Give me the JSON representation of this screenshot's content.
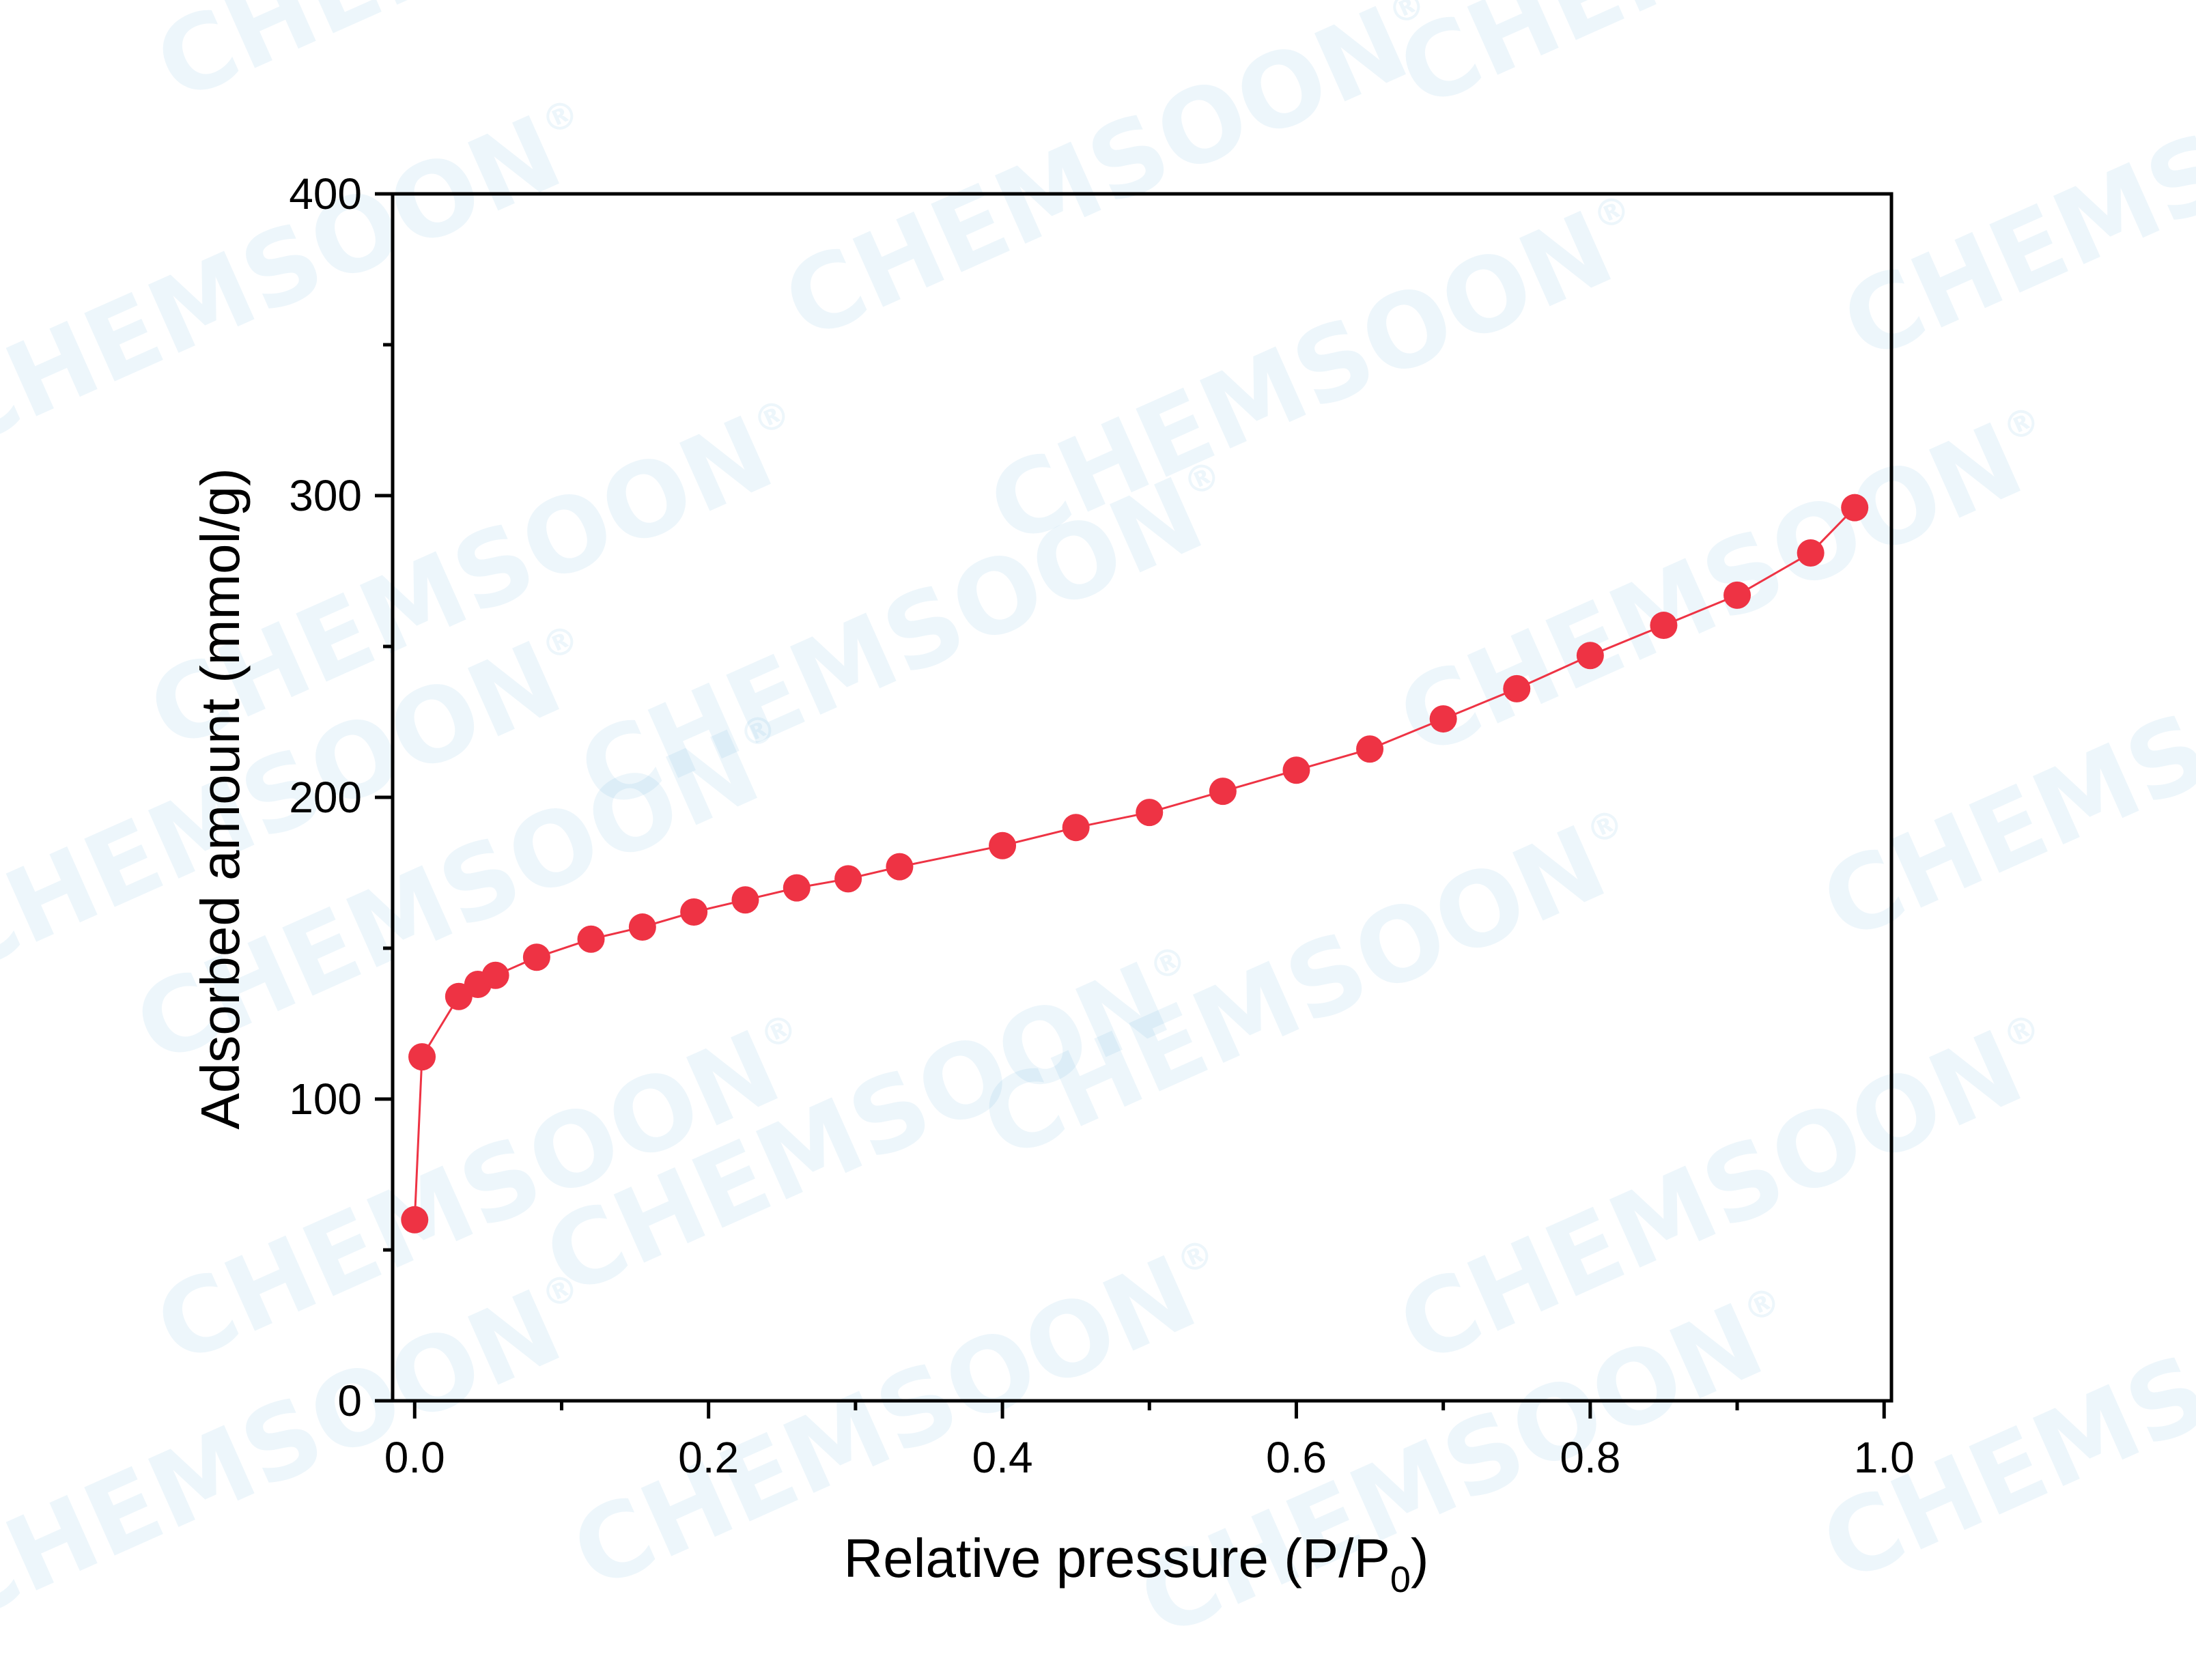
{
  "watermark": {
    "text": "CHEMSOON",
    "mark": "®",
    "color": "#3aa0d8"
  },
  "chart_data": {
    "type": "line",
    "xlabel_main": "Relative pressure (P/P",
    "xlabel_sub": "0",
    "xlabel_end": ")",
    "ylabel": "Adsorbed amount (mmol/g)",
    "xlim": [
      -0.015,
      1.005
    ],
    "ylim": [
      0,
      400
    ],
    "xticks": [
      0.0,
      0.2,
      0.4,
      0.6,
      0.8,
      1.0
    ],
    "xtick_labels": [
      "0.0",
      "0.2",
      "0.4",
      "0.6",
      "0.8",
      "1.0"
    ],
    "xminor": [
      0.1,
      0.3,
      0.5,
      0.7,
      0.9
    ],
    "yticks": [
      0,
      100,
      200,
      300,
      400
    ],
    "ytick_labels": [
      "0",
      "100",
      "200",
      "300",
      "400"
    ],
    "yminor": [
      50,
      150,
      250,
      350
    ],
    "grid": false,
    "legend": "none",
    "series": [
      {
        "color": "#ee3344",
        "x": [
          0.0,
          0.005,
          0.03,
          0.043,
          0.055,
          0.083,
          0.12,
          0.155,
          0.19,
          0.225,
          0.26,
          0.295,
          0.33,
          0.4,
          0.45,
          0.5,
          0.55,
          0.6,
          0.65,
          0.7,
          0.75,
          0.8,
          0.85,
          0.9,
          0.95,
          0.98
        ],
        "y": [
          60,
          114,
          134,
          138,
          141,
          147,
          153,
          157,
          162,
          166,
          170,
          173,
          177,
          184,
          190,
          195,
          202,
          209,
          216,
          226,
          236,
          247,
          257,
          267,
          281,
          296
        ]
      }
    ]
  }
}
